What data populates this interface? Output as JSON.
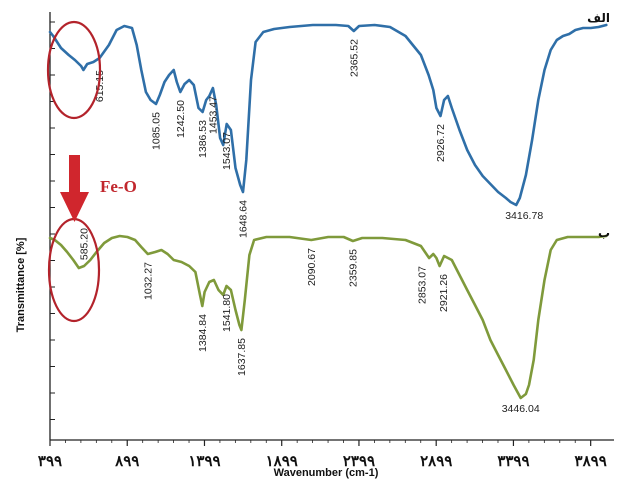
{
  "chart_data": {
    "type": "line",
    "xlabel": "Wavenumber (cm-1)",
    "ylabel": "Transmittance [%]",
    "xlim": [
      399,
      4050
    ],
    "x_ticks": [
      399,
      899,
      1399,
      1899,
      2399,
      2899,
      3399,
      3899
    ],
    "x_tick_labels": [
      "۳۹۹",
      "۸۹۹",
      "۱۳۹۹",
      "۱۸۹۹",
      "۲۳۹۹",
      "۲۸۹۹",
      "۳۳۹۹",
      "۳۸۹۹"
    ],
    "annotation": {
      "text": "Fe-O",
      "color": "#c1272d"
    },
    "series": [
      {
        "name": "الف",
        "color": "#2f6fa8",
        "peaks": [
          {
            "x": 615.15,
            "label": "615.15"
          },
          {
            "x": 1085.05,
            "label": "1085.05"
          },
          {
            "x": 1242.5,
            "label": "1242.50"
          },
          {
            "x": 1386.53,
            "label": "1386.53"
          },
          {
            "x": 1453.47,
            "label": "1453.47"
          },
          {
            "x": 1543.07,
            "label": "1543.07"
          },
          {
            "x": 1648.64,
            "label": "1648.64"
          },
          {
            "x": 2365.52,
            "label": "2365.52"
          },
          {
            "x": 2926.72,
            "label": "2926.72"
          },
          {
            "x": 3416.78,
            "label": "3416.78"
          }
        ],
        "points": [
          [
            399,
            32
          ],
          [
            420,
            36
          ],
          [
            470,
            48
          ],
          [
            520,
            55
          ],
          [
            560,
            60
          ],
          [
            600,
            66
          ],
          [
            615.15,
            70
          ],
          [
            640,
            64
          ],
          [
            680,
            62
          ],
          [
            720,
            58
          ],
          [
            780,
            45
          ],
          [
            830,
            30
          ],
          [
            880,
            26
          ],
          [
            930,
            28
          ],
          [
            960,
            45
          ],
          [
            990,
            70
          ],
          [
            1020,
            92
          ],
          [
            1050,
            100
          ],
          [
            1085.05,
            104
          ],
          [
            1110,
            95
          ],
          [
            1140,
            82
          ],
          [
            1170,
            75
          ],
          [
            1200,
            70
          ],
          [
            1220,
            82
          ],
          [
            1242.5,
            92
          ],
          [
            1270,
            84
          ],
          [
            1300,
            80
          ],
          [
            1330,
            85
          ],
          [
            1360,
            108
          ],
          [
            1386.53,
            112
          ],
          [
            1410,
            100
          ],
          [
            1430,
            96
          ],
          [
            1453.47,
            88
          ],
          [
            1475,
            105
          ],
          [
            1500,
            138
          ],
          [
            1520,
            145
          ],
          [
            1543.07,
            124
          ],
          [
            1570,
            130
          ],
          [
            1600,
            168
          ],
          [
            1630,
            185
          ],
          [
            1648.64,
            192
          ],
          [
            1670,
            160
          ],
          [
            1700,
            80
          ],
          [
            1730,
            42
          ],
          [
            1780,
            32
          ],
          [
            1850,
            29
          ],
          [
            1950,
            27
          ],
          [
            2100,
            25
          ],
          [
            2250,
            25
          ],
          [
            2330,
            26
          ],
          [
            2365.52,
            31
          ],
          [
            2400,
            26
          ],
          [
            2500,
            25
          ],
          [
            2600,
            27
          ],
          [
            2700,
            36
          ],
          [
            2800,
            55
          ],
          [
            2850,
            75
          ],
          [
            2880,
            90
          ],
          [
            2900,
            108
          ],
          [
            2926.72,
            116
          ],
          [
            2950,
            100
          ],
          [
            2975,
            96
          ],
          [
            3000,
            108
          ],
          [
            3050,
            130
          ],
          [
            3100,
            150
          ],
          [
            3150,
            165
          ],
          [
            3200,
            176
          ],
          [
            3250,
            184
          ],
          [
            3300,
            192
          ],
          [
            3350,
            198
          ],
          [
            3380,
            202
          ],
          [
            3416.78,
            205
          ],
          [
            3440,
            198
          ],
          [
            3480,
            175
          ],
          [
            3520,
            140
          ],
          [
            3560,
            100
          ],
          [
            3600,
            70
          ],
          [
            3640,
            50
          ],
          [
            3680,
            40
          ],
          [
            3720,
            36
          ],
          [
            3760,
            34
          ],
          [
            3800,
            30
          ],
          [
            3850,
            28
          ],
          [
            3900,
            28
          ],
          [
            3950,
            27
          ],
          [
            4000,
            25
          ]
        ]
      },
      {
        "name": "ب",
        "color": "#7f9a3b",
        "peaks": [
          {
            "x": 585.2,
            "label": "585.20"
          },
          {
            "x": 1032.27,
            "label": "1032.27"
          },
          {
            "x": 1384.84,
            "label": "1384.84"
          },
          {
            "x": 1541.8,
            "label": "1541.80"
          },
          {
            "x": 1637.85,
            "label": "1637.85"
          },
          {
            "x": 2090.67,
            "label": "2090.67"
          },
          {
            "x": 2359.85,
            "label": "2359.85"
          },
          {
            "x": 2853.07,
            "label": "2853.07"
          },
          {
            "x": 2921.26,
            "label": "2921.26"
          },
          {
            "x": 3446.04,
            "label": "3446.04"
          }
        ],
        "points": [
          [
            399,
            238
          ],
          [
            430,
            240
          ],
          [
            470,
            245
          ],
          [
            510,
            252
          ],
          [
            550,
            260
          ],
          [
            585.2,
            268
          ],
          [
            620,
            266
          ],
          [
            660,
            260
          ],
          [
            700,
            252
          ],
          [
            750,
            243
          ],
          [
            800,
            238
          ],
          [
            850,
            236
          ],
          [
            900,
            237
          ],
          [
            950,
            240
          ],
          [
            990,
            247
          ],
          [
            1032.27,
            254
          ],
          [
            1080,
            252
          ],
          [
            1120,
            250
          ],
          [
            1160,
            254
          ],
          [
            1200,
            260
          ],
          [
            1250,
            262
          ],
          [
            1300,
            266
          ],
          [
            1340,
            272
          ],
          [
            1370,
            295
          ],
          [
            1384.84,
            306
          ],
          [
            1400,
            292
          ],
          [
            1430,
            282
          ],
          [
            1460,
            280
          ],
          [
            1490,
            290
          ],
          [
            1520,
            295
          ],
          [
            1541.8,
            286
          ],
          [
            1570,
            290
          ],
          [
            1600,
            310
          ],
          [
            1625,
            325
          ],
          [
            1637.85,
            330
          ],
          [
            1660,
            300
          ],
          [
            1690,
            255
          ],
          [
            1720,
            240
          ],
          [
            1800,
            237
          ],
          [
            1950,
            237
          ],
          [
            2090.67,
            240
          ],
          [
            2200,
            237
          ],
          [
            2300,
            237
          ],
          [
            2359.85,
            241
          ],
          [
            2420,
            238
          ],
          [
            2550,
            238
          ],
          [
            2700,
            240
          ],
          [
            2800,
            246
          ],
          [
            2853.07,
            258
          ],
          [
            2880,
            254
          ],
          [
            2900,
            258
          ],
          [
            2921.26,
            266
          ],
          [
            2950,
            256
          ],
          [
            3000,
            260
          ],
          [
            3050,
            275
          ],
          [
            3100,
            290
          ],
          [
            3150,
            305
          ],
          [
            3200,
            320
          ],
          [
            3250,
            340
          ],
          [
            3300,
            355
          ],
          [
            3350,
            370
          ],
          [
            3400,
            385
          ],
          [
            3446.04,
            398
          ],
          [
            3480,
            394
          ],
          [
            3500,
            385
          ],
          [
            3530,
            360
          ],
          [
            3560,
            320
          ],
          [
            3600,
            280
          ],
          [
            3640,
            250
          ],
          [
            3680,
            240
          ],
          [
            3750,
            237
          ],
          [
            3850,
            237
          ],
          [
            3950,
            237
          ],
          [
            4000,
            236
          ]
        ]
      }
    ]
  }
}
